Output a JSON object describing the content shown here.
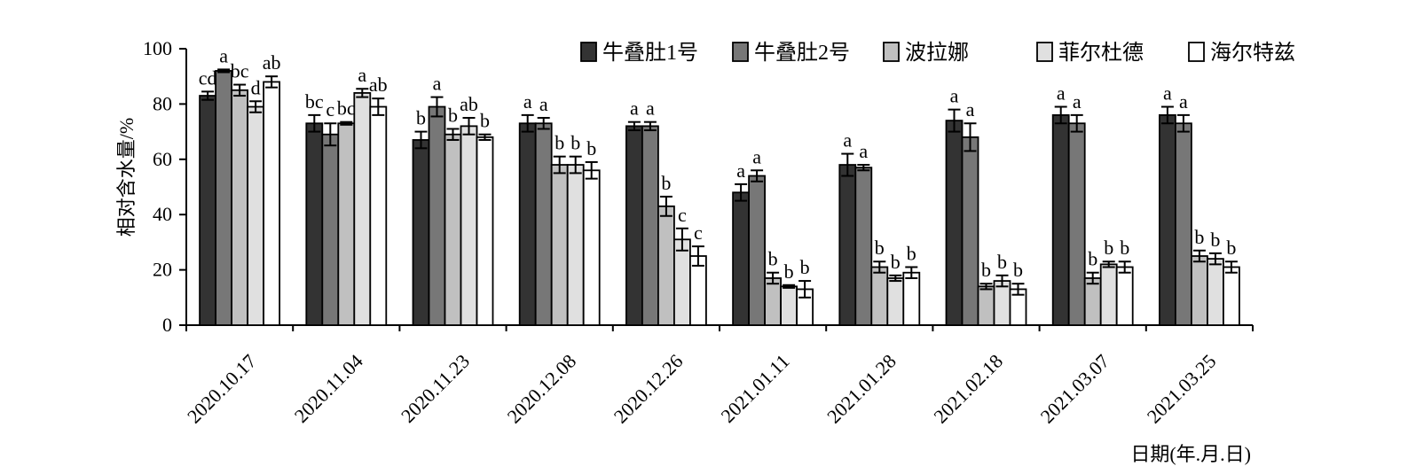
{
  "chart_data": {
    "type": "bar",
    "ylabel": "相对含水量/%",
    "xlabel": "日期(年.月.日)",
    "ylim": [
      0,
      100
    ],
    "yticks": [
      0,
      20,
      40,
      60,
      80,
      100
    ],
    "legend_position": "top-right",
    "categories": [
      "2020.10.17",
      "2020.11.04",
      "2020.11.23",
      "2020.12.08",
      "2020.12.26",
      "2021.01.11",
      "2021.01.28",
      "2021.02.18",
      "2021.03.07",
      "2021.03.25"
    ],
    "series": [
      {
        "name": "牛叠肚1号",
        "color": "#333333",
        "values": [
          83,
          73,
          67,
          73,
          72,
          48,
          58,
          74,
          76,
          76
        ],
        "errors": [
          1.5,
          3,
          3,
          3,
          1.5,
          3,
          4,
          4,
          3,
          3
        ],
        "letters": [
          "cd",
          "bc",
          "b",
          "a",
          "a",
          "a",
          "a",
          "a",
          "a",
          "a"
        ]
      },
      {
        "name": "牛叠肚2号",
        "color": "#777777",
        "values": [
          92,
          69,
          79,
          73,
          72,
          54,
          57,
          68,
          73,
          73
        ],
        "errors": [
          0.5,
          4,
          3.5,
          2,
          1.5,
          2,
          1,
          5,
          3,
          3
        ],
        "letters": [
          "a",
          "c",
          "a",
          "a",
          "a",
          "a",
          "a",
          "a",
          "a",
          "a"
        ]
      },
      {
        "name": "波拉娜",
        "color": "#c0c0c0",
        "values": [
          85,
          73,
          69,
          58,
          43,
          17,
          21,
          14,
          17,
          25
        ],
        "errors": [
          2,
          0.5,
          2,
          3,
          3.5,
          2,
          2,
          1,
          2,
          2
        ],
        "letters": [
          "bc",
          "bc",
          "b",
          "b",
          "b",
          "b",
          "b",
          "b",
          "b",
          "b"
        ]
      },
      {
        "name": "菲尔杜德",
        "color": "#e0e0e0",
        "values": [
          79,
          84,
          72,
          58,
          31,
          14,
          17,
          16,
          22,
          24
        ],
        "errors": [
          2,
          1.5,
          3,
          3,
          4,
          0.5,
          1,
          2,
          1,
          2
        ],
        "letters": [
          "d",
          "a",
          "ab",
          "b",
          "c",
          "b",
          "b",
          "b",
          "b",
          "b"
        ]
      },
      {
        "name": "海尔特兹",
        "color": "#ffffff",
        "values": [
          88,
          79,
          68,
          56,
          25,
          13,
          19,
          13,
          21,
          21
        ],
        "errors": [
          2,
          3,
          1,
          3,
          3.5,
          3,
          2,
          2,
          2,
          2
        ],
        "letters": [
          "ab",
          "ab",
          "b",
          "b",
          "c",
          "b",
          "b",
          "b",
          "b",
          "b"
        ]
      }
    ]
  }
}
